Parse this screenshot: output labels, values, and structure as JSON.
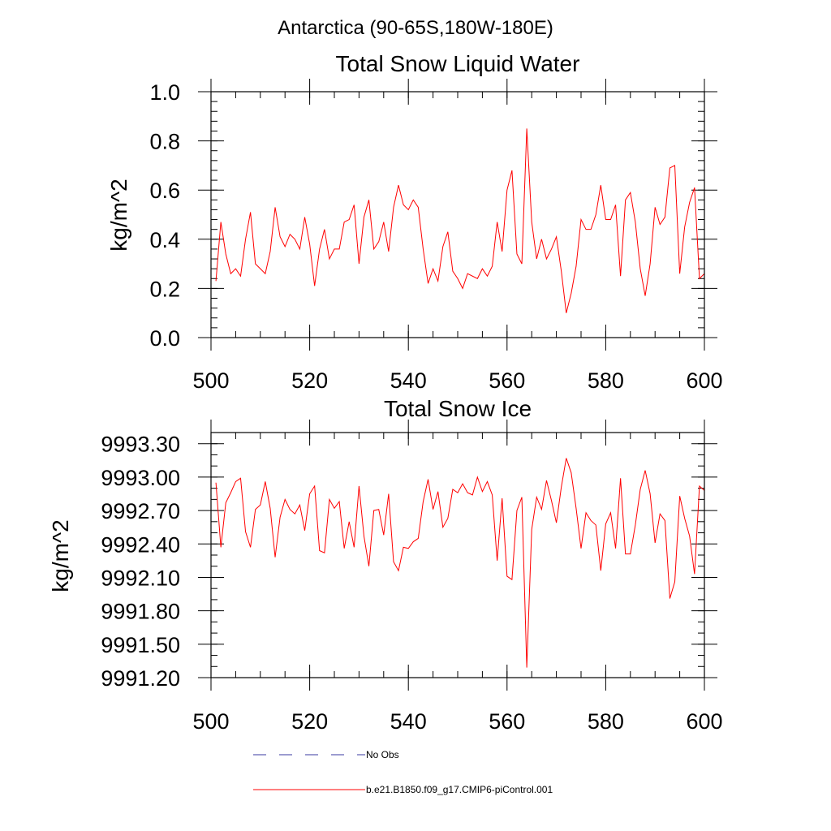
{
  "figure_title": "Antarctica (90-65S,180W-180E)",
  "colors": {
    "series": "#ff0000",
    "no_obs": "#3a3aa0",
    "axes": "#000000"
  },
  "chart_data": [
    {
      "type": "line",
      "title": "Total Snow Liquid Water",
      "xlabel": "",
      "ylabel": "kg/m^2",
      "xlim": [
        500,
        600
      ],
      "ylim": [
        0.0,
        1.0
      ],
      "x_major_ticks": [
        500,
        520,
        540,
        560,
        580,
        600
      ],
      "x_tick_labels": [
        "500",
        "520",
        "540",
        "560",
        "580",
        "600"
      ],
      "x_minor_step": 5,
      "y_major_ticks": [
        0.0,
        0.2,
        0.4,
        0.6,
        0.8,
        1.0
      ],
      "y_tick_labels": [
        "0.0",
        "0.2",
        "0.4",
        "0.6",
        "0.8",
        "1.0"
      ],
      "y_minor_step": 0.04,
      "grid": false,
      "series": [
        {
          "name": "b.e21.B1850.f09_g17.CMIP6-piControl.001",
          "color": "#ff0000",
          "x_start": 501,
          "x_step": 1,
          "values": [
            0.23,
            0.47,
            0.34,
            0.26,
            0.28,
            0.25,
            0.4,
            0.51,
            0.3,
            0.28,
            0.26,
            0.35,
            0.53,
            0.41,
            0.37,
            0.42,
            0.4,
            0.36,
            0.49,
            0.38,
            0.21,
            0.36,
            0.44,
            0.32,
            0.36,
            0.36,
            0.47,
            0.48,
            0.54,
            0.3,
            0.49,
            0.56,
            0.36,
            0.39,
            0.47,
            0.35,
            0.53,
            0.62,
            0.54,
            0.52,
            0.56,
            0.53,
            0.36,
            0.22,
            0.28,
            0.23,
            0.37,
            0.43,
            0.27,
            0.24,
            0.2,
            0.26,
            0.25,
            0.24,
            0.28,
            0.25,
            0.29,
            0.47,
            0.35,
            0.6,
            0.68,
            0.34,
            0.3,
            0.85,
            0.47,
            0.32,
            0.4,
            0.32,
            0.36,
            0.41,
            0.27,
            0.1,
            0.18,
            0.29,
            0.48,
            0.44,
            0.44,
            0.5,
            0.62,
            0.48,
            0.48,
            0.54,
            0.25,
            0.56,
            0.59,
            0.47,
            0.28,
            0.17,
            0.3,
            0.53,
            0.46,
            0.49,
            0.69,
            0.7,
            0.26,
            0.45,
            0.55,
            0.61,
            0.24,
            0.26
          ]
        }
      ]
    },
    {
      "type": "line",
      "title": "Total Snow Ice",
      "xlabel": "",
      "ylabel": "kg/m^2",
      "xlim": [
        500,
        600
      ],
      "ylim": [
        9991.2,
        9993.4
      ],
      "x_major_ticks": [
        500,
        520,
        540,
        560,
        580,
        600
      ],
      "x_tick_labels": [
        "500",
        "520",
        "540",
        "560",
        "580",
        "600"
      ],
      "x_minor_step": 5,
      "y_major_ticks": [
        9991.2,
        9991.5,
        9991.8,
        9992.1,
        9992.4,
        9992.7,
        9993.0,
        9993.3
      ],
      "y_tick_labels": [
        "9991.20",
        "9991.50",
        "9991.80",
        "9992.10",
        "9992.40",
        "9992.70",
        "9993.00",
        "9993.30"
      ],
      "y_minor_step": 0.1,
      "grid": false,
      "series": [
        {
          "name": "b.e21.B1850.f09_g17.CMIP6-piControl.001",
          "color": "#ff0000",
          "x_start": 501,
          "x_step": 1,
          "values": [
            9992.95,
            9992.37,
            9992.77,
            9992.86,
            9992.96,
            9992.99,
            9992.51,
            9992.37,
            9992.71,
            9992.75,
            9992.96,
            9992.72,
            9992.28,
            9992.64,
            9992.8,
            9992.71,
            9992.67,
            9992.75,
            9992.52,
            9992.85,
            9992.92,
            9992.34,
            9992.32,
            9992.8,
            9992.72,
            9992.78,
            9992.36,
            9992.6,
            9992.37,
            9992.92,
            9992.47,
            9992.2,
            9992.7,
            9992.71,
            9992.48,
            9992.85,
            9992.24,
            9992.16,
            9992.37,
            9992.36,
            9992.42,
            9992.45,
            9992.78,
            9992.98,
            9992.71,
            9992.87,
            9992.55,
            9992.63,
            9992.89,
            9992.86,
            9992.94,
            9992.86,
            9992.84,
            9993.0,
            9992.87,
            9992.96,
            9992.84,
            9992.25,
            9992.81,
            9992.11,
            9992.08,
            9992.7,
            9992.82,
            9991.29,
            9992.53,
            9992.82,
            9992.71,
            9992.97,
            9992.79,
            9992.59,
            9992.91,
            9993.17,
            9993.04,
            9992.72,
            9992.36,
            9992.68,
            9992.61,
            9992.57,
            9992.16,
            9992.58,
            9992.68,
            9992.36,
            9992.99,
            9992.31,
            9992.31,
            9992.57,
            9992.89,
            9993.06,
            9992.85,
            9992.41,
            9992.67,
            9992.61,
            9991.91,
            9992.06,
            9992.83,
            9992.63,
            9992.47,
            9992.13,
            9992.92,
            9992.88
          ]
        }
      ]
    }
  ],
  "legend": {
    "placement": "bottom",
    "entries": [
      {
        "label": "No Obs",
        "style": "dashed",
        "color": "#3a3aa0"
      },
      {
        "label": "b.e21.B1850.f09_g17.CMIP6-piControl.001",
        "style": "solid",
        "color": "#ff0000"
      }
    ]
  }
}
